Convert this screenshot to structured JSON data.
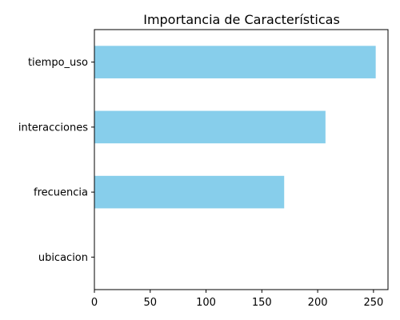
{
  "chart_data": {
    "type": "bar",
    "orientation": "horizontal",
    "title": "Importancia de Características",
    "categories": [
      "tiempo_uso",
      "interacciones",
      "frecuencia",
      "ubicacion"
    ],
    "values": [
      252,
      207,
      170,
      0
    ],
    "xlim": [
      0,
      263
    ],
    "xticks": [
      0,
      50,
      100,
      150,
      200,
      250
    ],
    "xlabel": "",
    "ylabel": "",
    "bar_color": "#87ceeb",
    "grid": false,
    "legend": "none"
  }
}
